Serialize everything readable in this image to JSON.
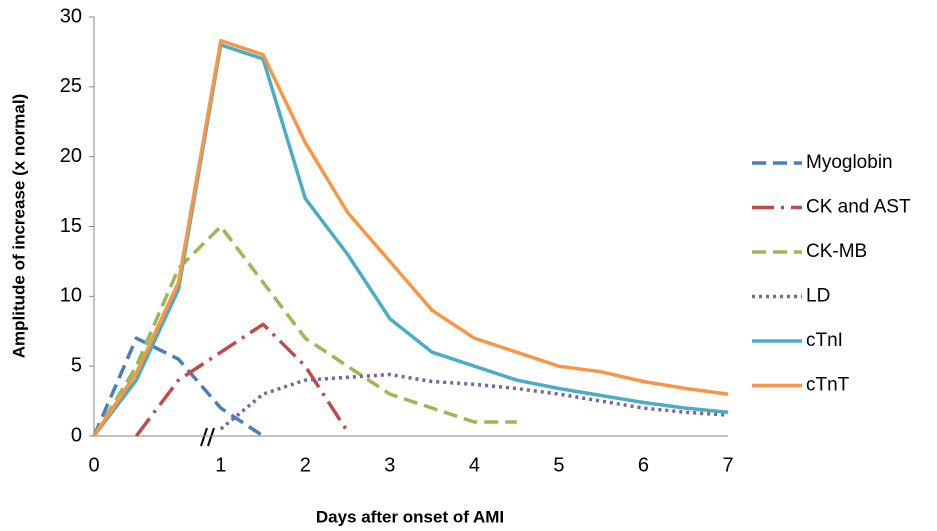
{
  "chart_data": {
    "type": "line",
    "x_label": "Days after onset of AMI",
    "y_label": "Amplitude of increase (x normal)",
    "categories": [
      "0",
      null,
      null,
      "1",
      null,
      "2",
      null,
      "3",
      null,
      "4",
      null,
      "5",
      null,
      "6",
      null,
      "7"
    ],
    "ylim": [
      0,
      30
    ],
    "yticks": [
      0,
      5,
      10,
      15,
      20,
      25,
      30
    ],
    "grid": false,
    "legend": "right",
    "series": [
      {
        "name": "Myoglobin",
        "color": "#4a7ebb",
        "dash": "dashed",
        "values": [
          0,
          7,
          5.5,
          2,
          0,
          null,
          null,
          null,
          null,
          null,
          null,
          null,
          null,
          null,
          null,
          null
        ]
      },
      {
        "name": "CK and AST",
        "color": "#be4b48",
        "dash": "dash-dot",
        "values": [
          null,
          0,
          4,
          6,
          8,
          5,
          0.3,
          null,
          null,
          null,
          null,
          null,
          null,
          null,
          null,
          null
        ]
      },
      {
        "name": "CK-MB",
        "color": "#98b954",
        "dash": "dashed",
        "values": [
          0,
          5,
          12,
          15,
          11,
          7,
          5,
          3,
          2,
          1,
          1,
          null,
          null,
          null,
          null,
          null
        ]
      },
      {
        "name": "LD",
        "color": "#7d60a0",
        "dash": "dotted",
        "values": [
          null,
          null,
          null,
          0.5,
          3,
          4,
          4.2,
          4.4,
          3.9,
          3.7,
          3.4,
          3,
          2.5,
          2,
          1.7,
          1.5
        ]
      },
      {
        "name": "cTnI",
        "color": "#4bacc6",
        "dash": "solid",
        "values": [
          0,
          4,
          10.5,
          28,
          27,
          17,
          13,
          8.4,
          6,
          5,
          4,
          3.4,
          2.9,
          2.4,
          2,
          1.7
        ]
      },
      {
        "name": "cTnT",
        "color": "#f79646",
        "dash": "solid",
        "values": [
          0,
          4.5,
          11,
          28.3,
          27.3,
          21,
          16,
          12.5,
          9,
          7,
          6,
          5,
          4.6,
          3.9,
          3.4,
          3
        ]
      }
    ]
  }
}
